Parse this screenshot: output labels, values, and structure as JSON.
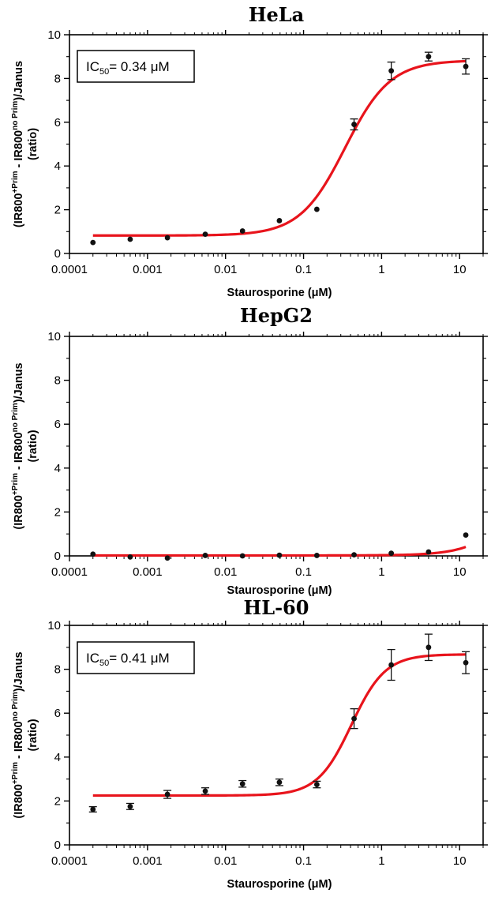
{
  "colors": {
    "fit": "#e8141c",
    "points": "#111111",
    "axes": "#000000"
  },
  "chart_data": [
    {
      "type": "scatter",
      "title": "HeLa",
      "xlabel": "Staurosporine (μM)",
      "ylabel": "(IR800⁺ᴾʳⁱᵐ - IR800ⁿᵒ ᴾʳⁱᵐ)/Janus (ratio)",
      "ylabel_parts": {
        "l1a": "(IR800",
        "l1b": "+Prim",
        "l1c": " - IR800",
        "l1d": "no Prim",
        "l1e": ")/Janus",
        "l2": "(ratio)"
      },
      "x_scale": "log",
      "xlim": [
        0.0001,
        20
      ],
      "ylim": [
        0,
        10
      ],
      "xticks": [
        0.0001,
        0.001,
        0.01,
        0.1,
        1,
        10
      ],
      "xtick_labels": [
        "0.0001",
        "0.001",
        "0.01",
        "0.1",
        "1",
        "10"
      ],
      "yticks": [
        0,
        2,
        4,
        6,
        8,
        10
      ],
      "ytick_labels": [
        "0",
        "2",
        "4",
        "6",
        "8",
        "10"
      ],
      "annotation": {
        "pre": "IC",
        "sub": "50",
        "post": "= 0.34 μM"
      },
      "series": [
        {
          "x": [
            0.0002,
            0.0006,
            0.0018,
            0.0055,
            0.0165,
            0.049,
            0.148,
            0.444,
            1.33,
            4.0,
            12.0
          ],
          "y": [
            0.5,
            0.65,
            0.72,
            0.88,
            1.03,
            1.5,
            2.02,
            5.9,
            8.35,
            9.0,
            8.55
          ],
          "err": [
            0.05,
            0.05,
            0.05,
            0.05,
            0.05,
            0.06,
            0.06,
            0.25,
            0.4,
            0.2,
            0.35
          ]
        }
      ],
      "fit": {
        "bottom": 0.82,
        "top": 8.83,
        "ic50": 0.34,
        "hill": 1.5
      }
    },
    {
      "type": "scatter",
      "title": "HepG2",
      "xlabel": "Staurosporine (μM)",
      "ylabel": "(IR800⁺ᴾʳⁱᵐ - IR800ⁿᵒ ᴾʳⁱᵐ)/Janus (ratio)",
      "ylabel_parts": {
        "l1a": "(IR800",
        "l1b": "+Prim",
        "l1c": " - IR800",
        "l1d": "no Prim",
        "l1e": ")/Janus",
        "l2": "(ratio)"
      },
      "x_scale": "log",
      "xlim": [
        0.0001,
        20
      ],
      "ylim": [
        0,
        10
      ],
      "xticks": [
        0.0001,
        0.001,
        0.01,
        0.1,
        1,
        10
      ],
      "xtick_labels": [
        "0.0001",
        "0.001",
        "0.01",
        "0.1",
        "1",
        "10"
      ],
      "yticks": [
        0,
        2,
        4,
        6,
        8,
        10
      ],
      "ytick_labels": [
        "0",
        "2",
        "4",
        "6",
        "8",
        "10"
      ],
      "series": [
        {
          "x": [
            0.0002,
            0.0006,
            0.0018,
            0.0055,
            0.0165,
            0.049,
            0.148,
            0.444,
            1.33,
            4.0,
            12.0
          ],
          "y": [
            0.08,
            -0.05,
            -0.1,
            0.02,
            0.0,
            0.03,
            0.02,
            0.05,
            0.12,
            0.18,
            0.95
          ],
          "err": [
            0.03,
            0.03,
            0.03,
            0.03,
            0.03,
            0.03,
            0.03,
            0.03,
            0.04,
            0.05,
            0.06
          ]
        }
      ],
      "fit": {
        "bottom": 0.02,
        "top": 8.8,
        "ic50": 100,
        "hill": 1.45
      }
    },
    {
      "type": "scatter",
      "title": "HL-60",
      "xlabel": "Staurosporine (μM)",
      "ylabel": "(IR800⁺ᴾʳⁱᵐ - IR800ⁿᵒ ᴾʳⁱᵐ)/Janus (ratio)",
      "ylabel_parts": {
        "l1a": "(IR800",
        "l1b": "+Prim",
        "l1c": " - IR800",
        "l1d": "no Prim",
        "l1e": ")/Janus",
        "l2": "(ratio)"
      },
      "x_scale": "log",
      "xlim": [
        0.0001,
        20
      ],
      "ylim": [
        0,
        10
      ],
      "xticks": [
        0.0001,
        0.001,
        0.01,
        0.1,
        1,
        10
      ],
      "xtick_labels": [
        "0.0001",
        "0.001",
        "0.01",
        "0.1",
        "1",
        "10"
      ],
      "yticks": [
        0,
        2,
        4,
        6,
        8,
        10
      ],
      "ytick_labels": [
        "0",
        "2",
        "4",
        "6",
        "8",
        "10"
      ],
      "annotation": {
        "pre": "IC",
        "sub": "50",
        "post": "= 0.41 μM"
      },
      "series": [
        {
          "x": [
            0.0002,
            0.0006,
            0.0018,
            0.0055,
            0.0165,
            0.049,
            0.148,
            0.444,
            1.33,
            4.0,
            12.0
          ],
          "y": [
            1.62,
            1.75,
            2.3,
            2.45,
            2.78,
            2.85,
            2.75,
            5.75,
            8.2,
            9.0,
            8.3
          ],
          "err": [
            0.12,
            0.14,
            0.18,
            0.15,
            0.15,
            0.15,
            0.15,
            0.45,
            0.7,
            0.6,
            0.5
          ]
        }
      ],
      "fit": {
        "bottom": 2.25,
        "top": 8.68,
        "ic50": 0.41,
        "hill": 2.0
      }
    }
  ]
}
